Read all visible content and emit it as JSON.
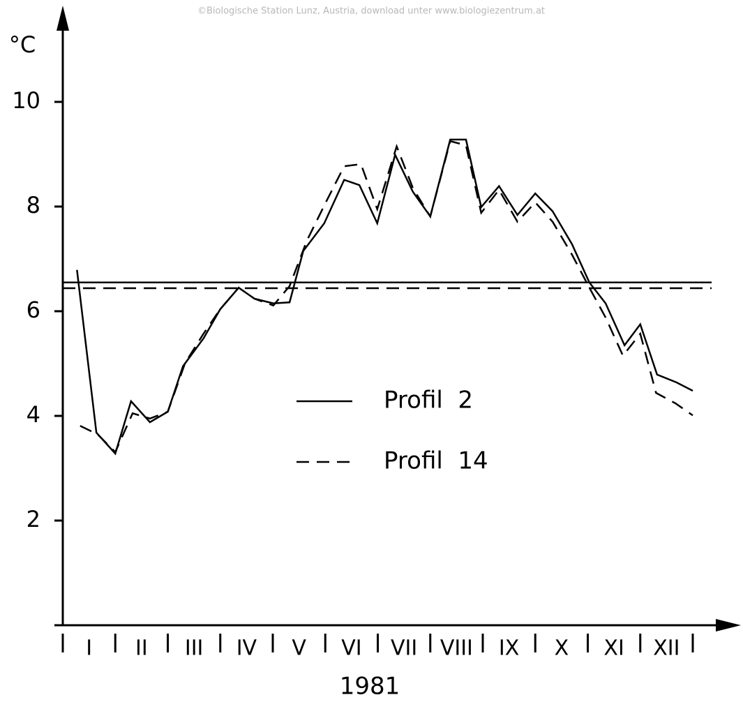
{
  "watermark": "©Biologische Station Lunz, Austria, download unter www.biologiezentrum.at",
  "chart_data": {
    "type": "line",
    "y_label": "°C",
    "x_label": "1981",
    "categories": [
      "I",
      "II",
      "III",
      "IV",
      "V",
      "VI",
      "VII",
      "VIII",
      "IX",
      "X",
      "XI",
      "XII"
    ],
    "xlim": [
      0,
      12
    ],
    "ylim": [
      0,
      10
    ],
    "yticks": [
      2,
      4,
      6,
      8,
      10
    ],
    "grid": false,
    "series": [
      {
        "name": "Profil  2",
        "color": "#000000",
        "dash": "solid",
        "mean": 6.55,
        "x": [
          0.27,
          0.64,
          1.0,
          1.3,
          1.66,
          2.0,
          2.29,
          2.68,
          3.0,
          3.35,
          3.65,
          4.01,
          4.32,
          4.58,
          4.98,
          5.36,
          5.65,
          5.99,
          6.33,
          6.67,
          7.0,
          7.38,
          7.68,
          7.97,
          8.31,
          8.66,
          9.0,
          9.33,
          9.7,
          10.03,
          10.34,
          10.7,
          11.0,
          11.32,
          11.69,
          12.0
        ],
        "values": [
          6.79,
          3.68,
          3.28,
          4.28,
          3.88,
          4.08,
          4.95,
          5.48,
          6.04,
          6.45,
          6.24,
          6.15,
          6.17,
          7.15,
          7.68,
          8.51,
          8.41,
          7.68,
          8.99,
          8.28,
          7.81,
          9.28,
          9.28,
          7.99,
          8.39,
          7.84,
          8.25,
          7.91,
          7.28,
          6.55,
          6.15,
          5.35,
          5.75,
          4.79,
          4.64,
          4.48
        ]
      },
      {
        "name": "Profil  14",
        "color": "#000000",
        "dash": "dashed",
        "mean": 6.44,
        "x": [
          0.33,
          0.66,
          1.0,
          1.33,
          1.66,
          2.0,
          2.33,
          2.68,
          3.0,
          3.35,
          3.65,
          4.01,
          4.32,
          4.65,
          5.01,
          5.36,
          5.68,
          5.99,
          6.36,
          6.67,
          7.0,
          7.38,
          7.68,
          7.97,
          8.31,
          8.66,
          9.0,
          9.33,
          9.7,
          10.03,
          10.34,
          10.67,
          11.0,
          11.3,
          11.67,
          12.0
        ],
        "values": [
          3.81,
          3.65,
          3.31,
          4.05,
          3.95,
          4.08,
          5.01,
          5.57,
          6.04,
          6.45,
          6.24,
          6.11,
          6.48,
          7.35,
          8.08,
          8.77,
          8.81,
          7.95,
          9.15,
          8.35,
          7.81,
          9.25,
          9.17,
          7.88,
          8.32,
          7.71,
          8.08,
          7.71,
          7.08,
          6.45,
          5.88,
          5.15,
          5.57,
          4.44,
          4.24,
          4.01
        ]
      }
    ]
  }
}
